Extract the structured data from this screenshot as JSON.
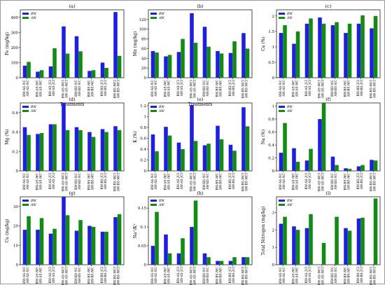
{
  "colors": {
    "BW": "#1f1fe0",
    "AW": "#138a13"
  },
  "categories": [
    "BW-AS-NC\nAW-AS-NC",
    "BW-AS-MC\nAW-AS-MC",
    "BW-AS-JCI\nAW-AS-JCI",
    "BW-AS-MCI\nAW-AS-MCI",
    "BW-BS-NC\nAW-BS-NC",
    "BW-BS-MC\nAW-BS-MC",
    "BW-BS-JCI\nAW-BS-JCI",
    "BW-BS-MCI\nAW-BS-MCI"
  ],
  "chart_data": [
    {
      "id": "a",
      "type": "bar",
      "title": "(a)",
      "xlabel": "Treatments",
      "ylabel": "Fe (mg/kg)",
      "ylim": [
        0,
        450
      ],
      "yticks": [
        0,
        100,
        200,
        300,
        400
      ],
      "series": [
        {
          "name": "BW",
          "values": [
            80,
            40,
            75,
            340,
            275,
            45,
            100,
            435
          ]
        },
        {
          "name": "AW",
          "values": [
            105,
            50,
            195,
            160,
            175,
            50,
            65,
            145
          ]
        }
      ]
    },
    {
      "id": "b",
      "type": "bar",
      "title": "(b)",
      "xlabel": "Treatments",
      "ylabel": "Mn (mg/kg)",
      "ylim": [
        0,
        140
      ],
      "yticks": [
        0,
        20,
        40,
        60,
        80,
        100,
        120
      ],
      "series": [
        {
          "name": "BW",
          "values": [
            55,
            44,
            53,
            133,
            105,
            55,
            51,
            92
          ]
        },
        {
          "name": "AW",
          "values": [
            52,
            47,
            80,
            72,
            64,
            50,
            75,
            60
          ]
        }
      ]
    },
    {
      "id": "c",
      "type": "bar",
      "title": "(c)",
      "xlabel": "",
      "ylabel": "Ca (%)",
      "ylim": [
        0,
        2.2
      ],
      "yticks": [
        0,
        0.5,
        1.0,
        1.5,
        2.0
      ],
      "series": [
        {
          "name": "BW",
          "values": [
            1.45,
            1.1,
            1.75,
            1.95,
            1.7,
            1.45,
            1.75,
            1.6
          ]
        },
        {
          "name": "AW",
          "values": [
            1.7,
            1.5,
            1.92,
            1.75,
            1.8,
            1.75,
            2.02,
            2.0
          ]
        }
      ]
    },
    {
      "id": "d",
      "type": "bar",
      "title": "(d)",
      "xlabel": "",
      "ylabel": "Mg (%)",
      "ylim": [
        0,
        0.7
      ],
      "yticks": [
        0,
        0.2,
        0.4,
        0.6
      ],
      "series": [
        {
          "name": "BW",
          "values": [
            0.45,
            0.38,
            0.48,
            0.7,
            0.45,
            0.4,
            0.43,
            0.46
          ]
        },
        {
          "name": "AW",
          "values": [
            0.37,
            0.39,
            0.48,
            0.42,
            0.42,
            0.35,
            0.4,
            0.42
          ]
        }
      ]
    },
    {
      "id": "e",
      "type": "bar",
      "title": "(e)",
      "xlabel": "",
      "ylabel": "K (%)",
      "ylim": [
        0,
        1.25
      ],
      "yticks": [
        0,
        0.2,
        0.4,
        0.6,
        0.8,
        1.0,
        1.2
      ],
      "series": [
        {
          "name": "BW",
          "values": [
            0.67,
            0.81,
            0.52,
            1.21,
            0.47,
            0.83,
            0.48,
            1.17
          ]
        },
        {
          "name": "AW",
          "values": [
            0.36,
            0.65,
            0.4,
            0.55,
            0.5,
            0.58,
            0.37,
            0.82
          ]
        }
      ]
    },
    {
      "id": "f",
      "type": "bar",
      "title": "(f)",
      "xlabel": "",
      "ylabel": "Na (%)",
      "ylim": [
        0,
        1.05
      ],
      "yticks": [
        0,
        0.2,
        0.4,
        0.6,
        0.8,
        1.0
      ],
      "series": [
        {
          "name": "BW",
          "values": [
            0.28,
            0.35,
            0.16,
            0.8,
            0.22,
            0.04,
            0.07,
            0.17
          ]
        },
        {
          "name": "AW",
          "values": [
            0.74,
            0.14,
            0.34,
            1.05,
            0.09,
            0.03,
            0.09,
            0.16
          ]
        }
      ]
    },
    {
      "id": "g",
      "type": "bar",
      "title": "(g)",
      "xlabel": "Treatments",
      "ylabel": "Cu (mg/kg)",
      "ylim": [
        0,
        35
      ],
      "yticks": [
        0,
        10,
        20,
        30
      ],
      "series": [
        {
          "name": "BW",
          "values": [
            18,
            18,
            16,
            35,
            17.5,
            20,
            17,
            24.5
          ]
        },
        {
          "name": "AW",
          "values": [
            25,
            24,
            18.5,
            25.5,
            23,
            19.5,
            17,
            26
          ]
        }
      ]
    },
    {
      "id": "h",
      "type": "bar",
      "title": "(h)",
      "xlabel": "Treatments",
      "ylabel": "Na⁺/K⁺",
      "ylim": [
        0,
        0.18
      ],
      "yticks": [
        0,
        0.05,
        0.1,
        0.15
      ],
      "series": [
        {
          "name": "BW",
          "values": [
            0.05,
            0.08,
            0.03,
            0.1,
            0.03,
            0.01,
            0.01,
            0.02
          ]
        },
        {
          "name": "AW",
          "values": [
            0.14,
            0.03,
            0.07,
            0.17,
            0.02,
            0.01,
            0.02,
            0.02
          ]
        }
      ]
    },
    {
      "id": "i",
      "type": "bar",
      "title": "(i)",
      "xlabel": "Treatments",
      "ylabel": "Total Nitrogen (mg/kg)",
      "ylim": [
        0,
        3.9
      ],
      "yticks": [
        0,
        1,
        2,
        3
      ],
      "series": [
        {
          "name": "BW",
          "values": [
            2.35,
            2.2,
            2.1,
            0,
            0,
            2.1,
            2.65,
            0
          ]
        },
        {
          "name": "AW",
          "values": [
            2.75,
            2.0,
            2.9,
            1.25,
            2.75,
            1.95,
            2.7,
            3.8
          ]
        }
      ]
    }
  ]
}
